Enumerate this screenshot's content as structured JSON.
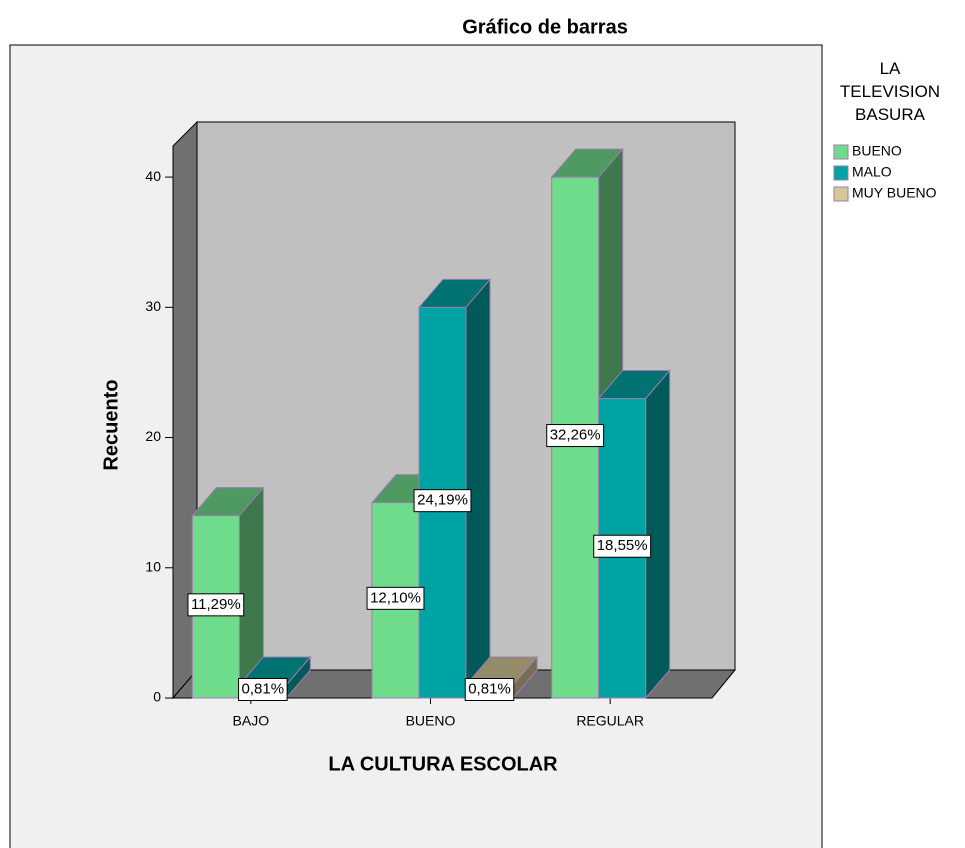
{
  "chart_data": {
    "type": "bar3d",
    "title": "Gráfico de barras",
    "x_label": "LA CULTURA ESCOLAR",
    "y_label": "Recuento",
    "legend_title": "LA TELEVISION BASURA",
    "categories": [
      "BAJO",
      "BUENO",
      "REGULAR"
    ],
    "series": [
      {
        "name": "BUENO",
        "color": "#6fdc8c",
        "values": [
          14,
          15,
          40
        ],
        "value_labels": [
          "11,29%",
          "12,10%",
          "32,26%"
        ]
      },
      {
        "name": "MALO",
        "color": "#00a3a3",
        "values": [
          1,
          30,
          23
        ],
        "value_labels": [
          "0,81%",
          "24,19%",
          "18,55%"
        ]
      },
      {
        "name": "MUY BUENO",
        "color": "#d4c896",
        "values": [
          null,
          1,
          null
        ],
        "value_labels": [
          null,
          "0,81%",
          null
        ]
      }
    ],
    "ylim": [
      0,
      44
    ],
    "yticks": [
      0,
      10,
      20,
      30,
      40
    ],
    "legend": "right"
  }
}
